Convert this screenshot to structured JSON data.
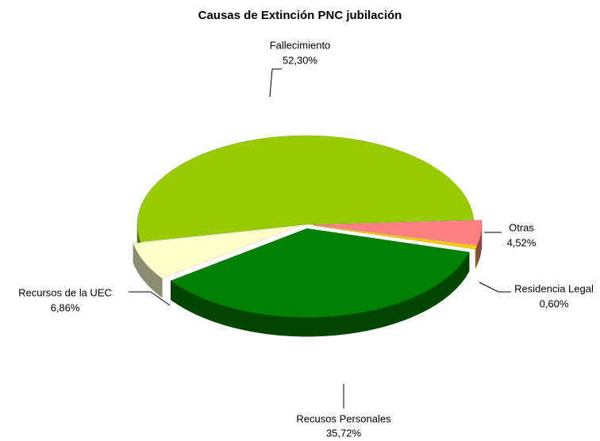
{
  "chart_data": {
    "type": "pie",
    "title": "Causas de Extinción PNC jubilación",
    "categories": [
      "Fallecimiento",
      "Recursos de la UEC",
      "Recusos Personales",
      "Residencia Legal",
      "Otras"
    ],
    "values": [
      52.3,
      6.86,
      35.72,
      0.6,
      4.52
    ],
    "value_labels": [
      "52,30%",
      "6,86%",
      "35,72%",
      "0,60%",
      "4,52%"
    ],
    "colors": [
      "#99cc00",
      "#ffffcc",
      "#008000",
      "#ffcc00",
      "#ff8080"
    ]
  }
}
